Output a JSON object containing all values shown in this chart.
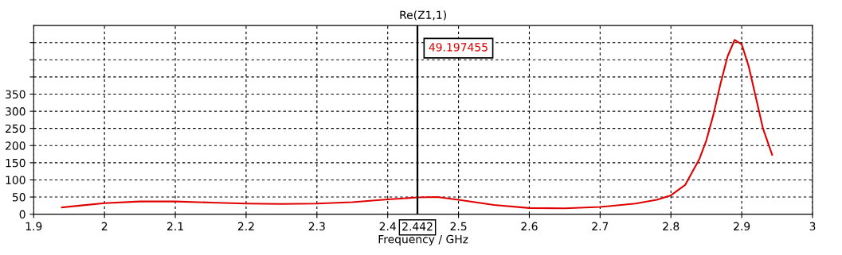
{
  "chart_data": {
    "type": "line",
    "title": "Re(Z1,1)",
    "xlabel": "Frequency / GHz",
    "xlim": [
      1.9,
      3
    ],
    "xticks": [
      1.9,
      2,
      2.1,
      2.2,
      2.3,
      2.4,
      2.5,
      2.6,
      2.7,
      2.8,
      2.9,
      3
    ],
    "ylim": [
      0,
      550
    ],
    "yticks": [
      0,
      50,
      100,
      150,
      200,
      250,
      300,
      350,
      {
        "value": 400,
        "label": null
      },
      {
        "value": 450,
        "label": null
      },
      {
        "value": 500,
        "label": null
      }
    ],
    "grid": true,
    "line_style": "solid",
    "marker": "none",
    "series": [
      {
        "color": "#e00000",
        "x": [
          1.94,
          1.97,
          2.0,
          2.05,
          2.1,
          2.15,
          2.2,
          2.25,
          2.3,
          2.35,
          2.4,
          2.442,
          2.47,
          2.5,
          2.55,
          2.6,
          2.65,
          2.7,
          2.75,
          2.78,
          2.8,
          2.82,
          2.84,
          2.85,
          2.86,
          2.87,
          2.88,
          2.89,
          2.9,
          2.91,
          2.92,
          2.93,
          2.943
        ],
        "values": [
          20,
          26,
          32,
          37,
          37,
          34,
          31,
          30,
          31,
          35,
          43,
          49,
          50,
          42,
          27,
          18,
          17,
          21,
          31,
          42,
          55,
          85,
          160,
          215,
          290,
          380,
          460,
          508,
          495,
          430,
          340,
          250,
          173
        ]
      }
    ],
    "ref_lines": [
      {
        "axis": "x",
        "value": 2.442,
        "label": "2.442",
        "color": "#000000",
        "line_style": "solid"
      }
    ],
    "annotations": [
      "49.197455"
    ]
  }
}
